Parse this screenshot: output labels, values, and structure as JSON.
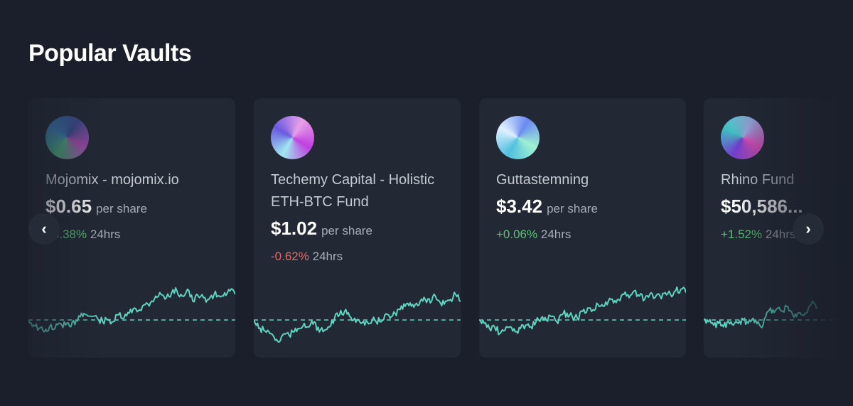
{
  "section_title": "Popular Vaults",
  "accent_color": "#5fd3c2",
  "vaults": [
    {
      "name": "Mojomix - mojomix.io",
      "price": "$0.65",
      "per_share": "per share",
      "change": "+0.38%",
      "period": "24hrs",
      "direction": "up",
      "avatar_colors": [
        "#3a4a8a",
        "#a04aa8",
        "#4aa87a",
        "#3a7ab0"
      ],
      "sparkline": [
        0,
        -6,
        -10,
        -14,
        -8,
        -10,
        -4,
        -6,
        -8,
        0,
        8,
        6,
        4,
        2,
        -2,
        0,
        -2,
        6,
        2,
        8,
        14,
        12,
        18,
        20,
        28,
        30,
        26,
        32,
        34,
        28,
        36,
        22,
        28,
        26,
        24,
        30,
        28,
        32,
        34,
        30
      ]
    },
    {
      "name": "Techemy Capital - Holistic ETH-BTC Fund",
      "price": "$1.02",
      "per_share": "per share",
      "change": "-0.62%",
      "period": "24hrs",
      "direction": "down",
      "avatar_colors": [
        "#e8a0e8",
        "#c040e0",
        "#a0e8f0",
        "#6a5ae0"
      ],
      "sparkline": [
        0,
        -10,
        -12,
        -14,
        -20,
        -26,
        -16,
        -18,
        -14,
        -10,
        -4,
        -8,
        -2,
        -14,
        -12,
        -8,
        2,
        6,
        10,
        4,
        2,
        -2,
        -6,
        -4,
        0,
        -2,
        6,
        2,
        8,
        12,
        16,
        20,
        18,
        22,
        24,
        20,
        28,
        20,
        22,
        24,
        30,
        22
      ]
    },
    {
      "name": "Guttastemning",
      "price": "$3.42",
      "per_share": "per share",
      "change": "+0.06%",
      "period": "24hrs",
      "direction": "up",
      "avatar_colors": [
        "#6a8af0",
        "#a0f0d0",
        "#50c0e0",
        "#e0f0ff"
      ],
      "sparkline": [
        0,
        -4,
        -10,
        -8,
        -16,
        -12,
        -8,
        -14,
        -10,
        -6,
        -8,
        -2,
        2,
        0,
        4,
        -2,
        6,
        8,
        4,
        2,
        10,
        14,
        12,
        18,
        16,
        22,
        20,
        24,
        30,
        26,
        34,
        28,
        24,
        30,
        26,
        28,
        32,
        30,
        34,
        36,
        32
      ]
    },
    {
      "name": "Rhino Fund",
      "price": "$50,586...",
      "per_share": "",
      "change": "+1.52%",
      "period": "24hrs",
      "direction": "up",
      "avatar_colors": [
        "#a0b0e8",
        "#e050c0",
        "#7040d0",
        "#40c0c0"
      ],
      "sparkline": [
        0,
        -2,
        -6,
        -4,
        -8,
        -2,
        -6,
        -4,
        0,
        -4,
        2,
        -2,
        -6,
        10,
        12,
        14,
        10,
        16,
        6,
        8,
        6,
        10,
        22,
        14
      ]
    }
  ],
  "nav": {
    "prev": "‹",
    "next": "›"
  }
}
